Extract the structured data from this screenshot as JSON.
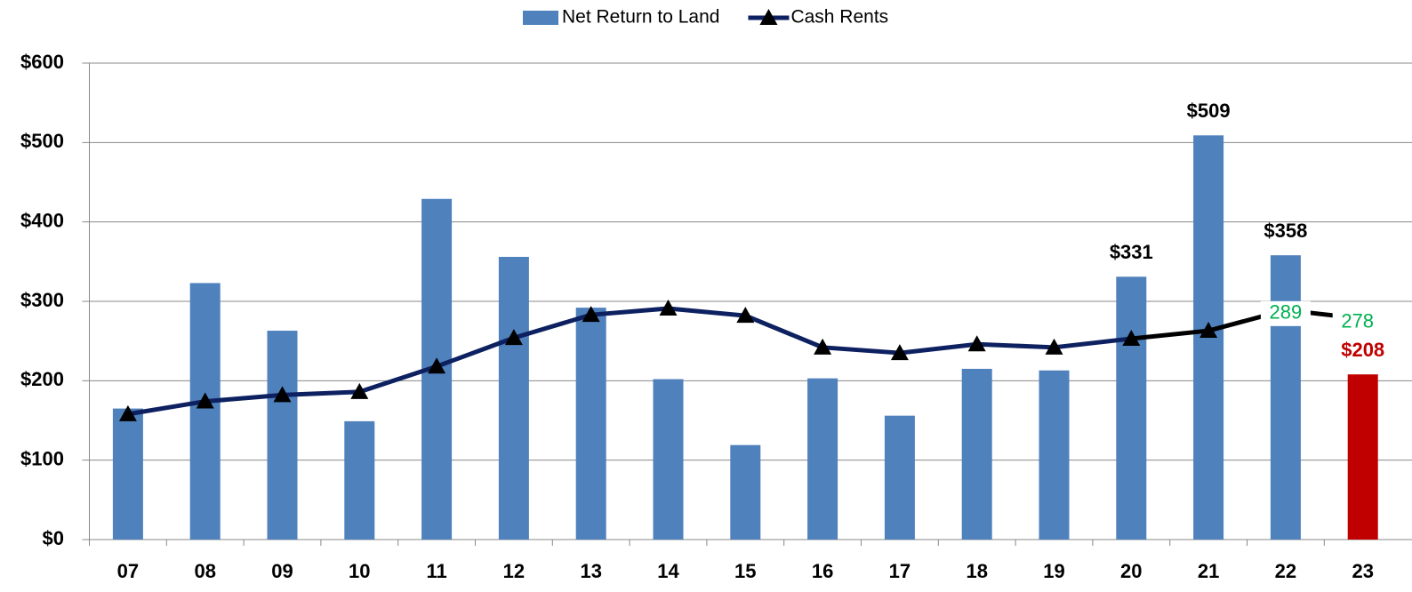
{
  "chart_data": {
    "type": "bar",
    "categories": [
      "07",
      "08",
      "09",
      "10",
      "11",
      "12",
      "13",
      "14",
      "15",
      "16",
      "17",
      "18",
      "19",
      "20",
      "21",
      "22",
      "23"
    ],
    "series": [
      {
        "name": "Net Return to Land",
        "type": "bar",
        "color": "#4f81bd",
        "colors": [
          "#4f81bd",
          "#4f81bd",
          "#4f81bd",
          "#4f81bd",
          "#4f81bd",
          "#4f81bd",
          "#4f81bd",
          "#4f81bd",
          "#4f81bd",
          "#4f81bd",
          "#4f81bd",
          "#4f81bd",
          "#4f81bd",
          "#4f81bd",
          "#4f81bd",
          "#4f81bd",
          "#c00000"
        ],
        "values": [
          165,
          323,
          263,
          149,
          429,
          356,
          292,
          202,
          119,
          203,
          156,
          215,
          213,
          331,
          509,
          358,
          208
        ],
        "value_labels": [
          null,
          null,
          null,
          null,
          null,
          null,
          null,
          null,
          null,
          null,
          null,
          null,
          null,
          "$331",
          "$509",
          "$358",
          "$208"
        ],
        "label_colors": [
          null,
          null,
          null,
          null,
          null,
          null,
          null,
          null,
          null,
          null,
          null,
          null,
          null,
          "#000000",
          "#000000",
          "#000000",
          "#c00000"
        ]
      },
      {
        "name": "Cash Rents",
        "type": "line",
        "color": "#0d2060",
        "segment_colors": [
          "#0d2060",
          "#0d2060",
          "#0d2060",
          "#0d2060",
          "#0d2060",
          "#0d2060",
          "#0d2060",
          "#0d2060",
          "#0d2060",
          "#0d2060",
          "#0d2060",
          "#0d2060",
          "#0d2060",
          "#000000",
          "#000000",
          "#000000"
        ],
        "markers": [
          true,
          true,
          true,
          true,
          true,
          true,
          true,
          true,
          true,
          true,
          true,
          true,
          true,
          true,
          true,
          false,
          false
        ],
        "values": [
          158,
          174,
          182,
          186,
          218,
          254,
          283,
          291,
          282,
          242,
          235,
          246,
          242,
          253,
          263,
          289,
          278
        ],
        "value_labels": [
          null,
          null,
          null,
          null,
          null,
          null,
          null,
          null,
          null,
          null,
          null,
          null,
          null,
          null,
          null,
          "289",
          "278"
        ],
        "label_color": "#00b050"
      }
    ],
    "ylim": [
      0,
      600
    ],
    "yticks": [
      {
        "value": 0,
        "label": "$0"
      },
      {
        "value": 100,
        "label": "$100"
      },
      {
        "value": 200,
        "label": "$200"
      },
      {
        "value": 300,
        "label": "$300"
      },
      {
        "value": 400,
        "label": "$400"
      },
      {
        "value": 500,
        "label": "$500"
      },
      {
        "value": 600,
        "label": "$600"
      }
    ],
    "grid": true,
    "legend": "top"
  }
}
